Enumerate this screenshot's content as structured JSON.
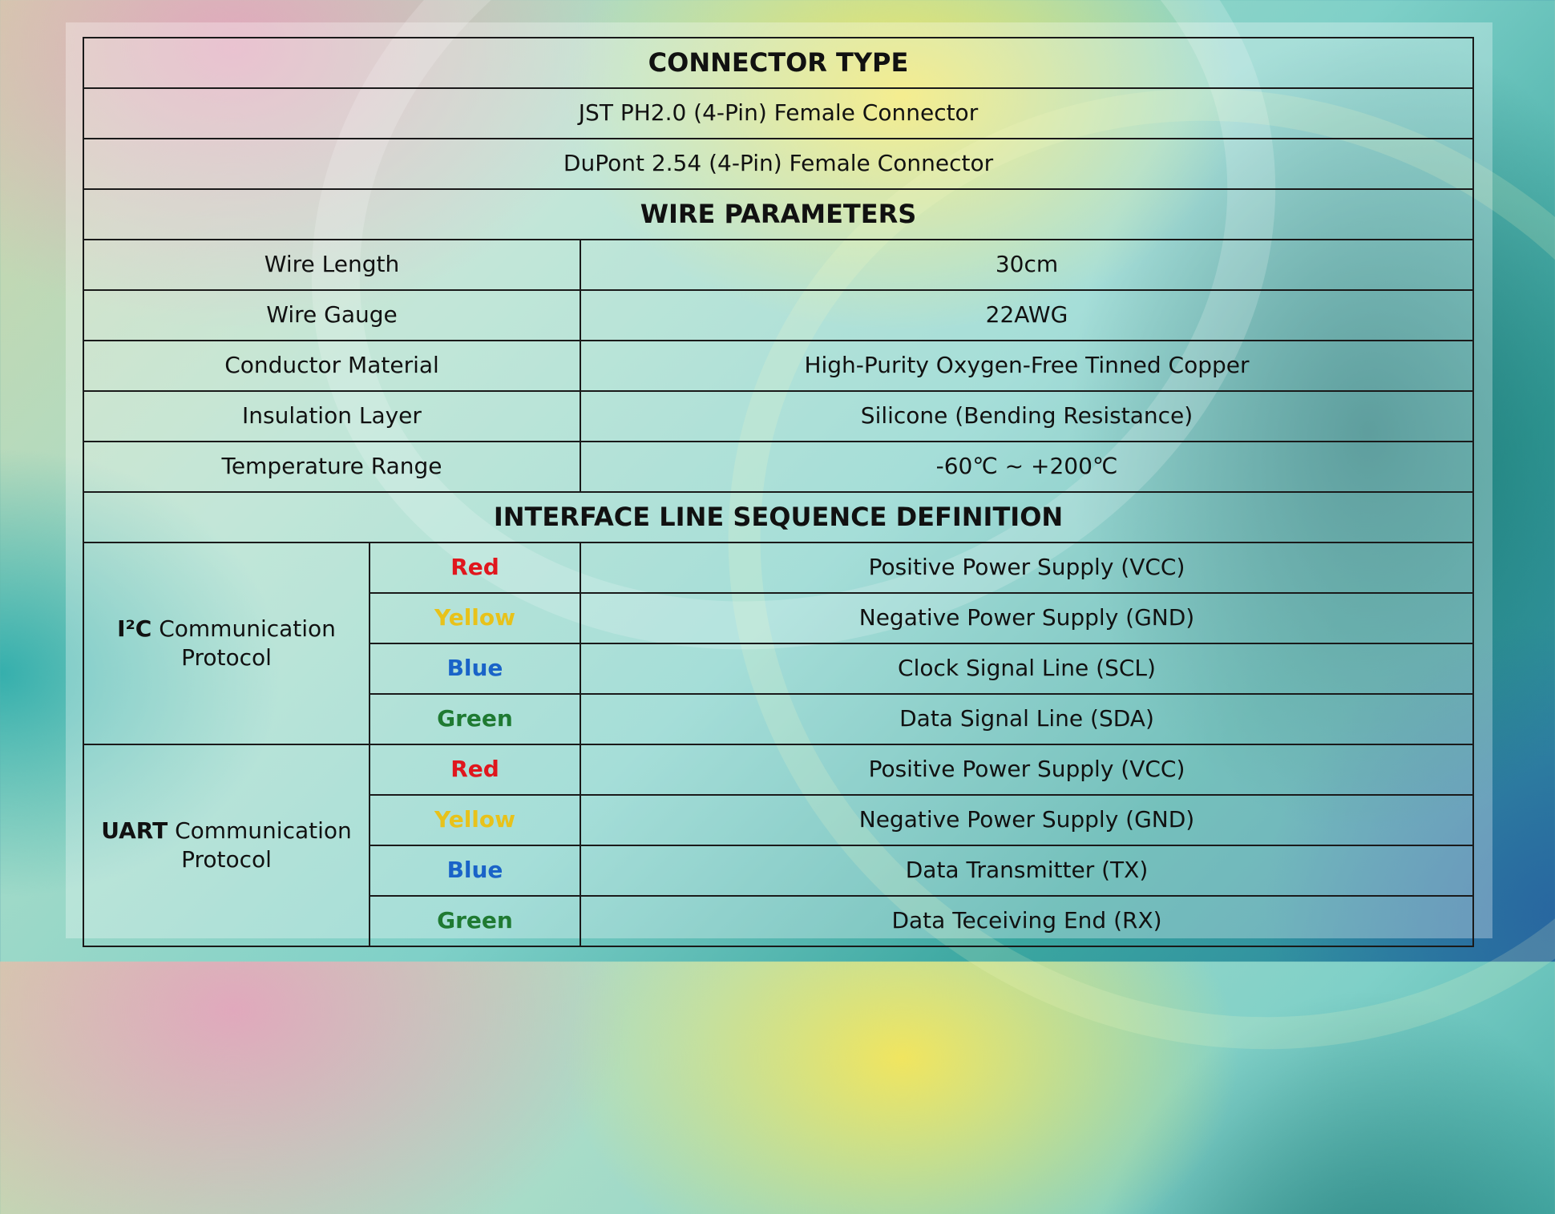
{
  "connector": {
    "header": "CONNECTOR TYPE",
    "rows": [
      "JST PH2.0 (4-Pin) Female Connector",
      "DuPont 2.54 (4-Pin) Female Connector"
    ]
  },
  "wire": {
    "header": "WIRE PARAMETERS",
    "rows": [
      {
        "label": "Wire Length",
        "value": "30cm"
      },
      {
        "label": "Wire Gauge",
        "value": "22AWG"
      },
      {
        "label": "Conductor Material",
        "value": "High-Purity Oxygen-Free Tinned Copper"
      },
      {
        "label": "Insulation Layer",
        "value": "Silicone (Bending Resistance)"
      },
      {
        "label": "Temperature Range",
        "value": "-60℃ ~ +200℃"
      }
    ]
  },
  "interface": {
    "header": "INTERFACE LINE SEQUENCE DEFINITION",
    "groups": [
      {
        "protocol_bold": "I²C",
        "protocol_rest": "Communication",
        "protocol_line2": "Protocol",
        "lines": [
          {
            "color": "Red",
            "hex": "#e0161d",
            "definition": "Positive Power Supply (VCC)"
          },
          {
            "color": "Yellow",
            "hex": "#e8c21a",
            "definition": "Negative Power Supply (GND)"
          },
          {
            "color": "Blue",
            "hex": "#1a63c8",
            "definition": "Clock Signal Line (SCL)"
          },
          {
            "color": "Green",
            "hex": "#1f7a32",
            "definition": "Data Signal Line (SDA)"
          }
        ]
      },
      {
        "protocol_bold": "UART",
        "protocol_rest": "Communication",
        "protocol_line2": "Protocol",
        "lines": [
          {
            "color": "Red",
            "hex": "#e0161d",
            "definition": "Positive Power Supply (VCC)"
          },
          {
            "color": "Yellow",
            "hex": "#e8c21a",
            "definition": "Negative Power Supply (GND)"
          },
          {
            "color": "Blue",
            "hex": "#1a63c8",
            "definition": "Data Transmitter (TX)"
          },
          {
            "color": "Green",
            "hex": "#1f7a32",
            "definition": "Data Teceiving End (RX)"
          }
        ]
      }
    ]
  }
}
